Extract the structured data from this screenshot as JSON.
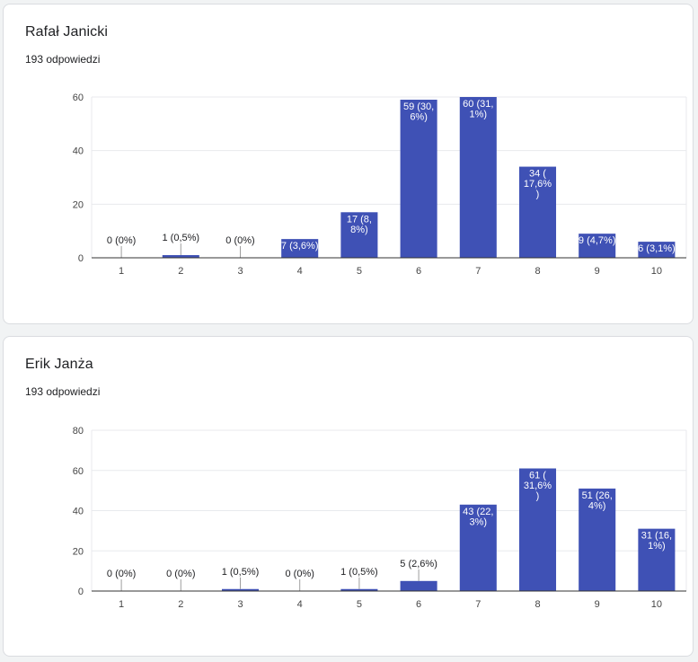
{
  "cards": [
    {
      "title": "Rafał Janicki",
      "subtitle": "193 odpowiedzi"
    },
    {
      "title": "Erik Janża",
      "subtitle": "193 odpowiedzi"
    }
  ],
  "colors": {
    "bar": "#3f51b5",
    "grid": "#e8eaed",
    "axis": "#333333",
    "tick_text": "#444444",
    "label_dark": "#202124",
    "label_light": "#ffffff"
  },
  "chart_data": [
    {
      "type": "bar",
      "categories": [
        "1",
        "2",
        "3",
        "4",
        "5",
        "6",
        "7",
        "8",
        "9",
        "10"
      ],
      "values": [
        0,
        1,
        0,
        7,
        17,
        59,
        60,
        34,
        9,
        6
      ],
      "labels": [
        [
          "0 (0%)"
        ],
        [
          "1 (0,5%)"
        ],
        [
          "0 (0%)"
        ],
        [
          "7 (3,6%)"
        ],
        [
          "17 (8,",
          "8%)"
        ],
        [
          "59 (30,",
          "6%)"
        ],
        [
          "60 (31,",
          "1%)"
        ],
        [
          "34 (",
          "17,6%",
          ")"
        ],
        [
          "9 (4,7%)"
        ],
        [
          "6 (3,1%)"
        ]
      ],
      "ylim": [
        0,
        60
      ],
      "yticks": [
        0,
        20,
        40,
        60
      ],
      "grid": true
    },
    {
      "type": "bar",
      "categories": [
        "1",
        "2",
        "3",
        "4",
        "5",
        "6",
        "7",
        "8",
        "9",
        "10"
      ],
      "values": [
        0,
        0,
        1,
        0,
        1,
        5,
        43,
        61,
        51,
        31
      ],
      "labels": [
        [
          "0 (0%)"
        ],
        [
          "0 (0%)"
        ],
        [
          "1 (0,5%)"
        ],
        [
          "0 (0%)"
        ],
        [
          "1 (0,5%)"
        ],
        [
          "5 (2,6%)"
        ],
        [
          "43 (22,",
          "3%)"
        ],
        [
          "61 (",
          "31,6%",
          ")"
        ],
        [
          "51 (26,",
          "4%)"
        ],
        [
          "31 (16,",
          "1%)"
        ]
      ],
      "ylim": [
        0,
        80
      ],
      "yticks": [
        0,
        20,
        40,
        60,
        80
      ],
      "grid": true
    }
  ]
}
